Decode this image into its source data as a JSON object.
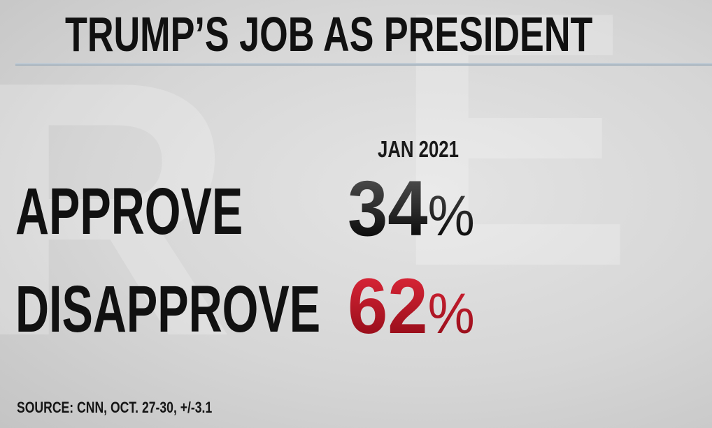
{
  "title": "TRUMP’S JOB AS PRESIDENT",
  "column_header": "JAN 2021",
  "rows": [
    {
      "label": "APPROVE",
      "value": "34",
      "unit": "%",
      "color": "#1e1e1e"
    },
    {
      "label": "DISAPPROVE",
      "value": "62",
      "unit": "%",
      "color": "#c1121f"
    }
  ],
  "source": "SOURCE: CNN, OCT. 27-30, +/-3.1"
}
